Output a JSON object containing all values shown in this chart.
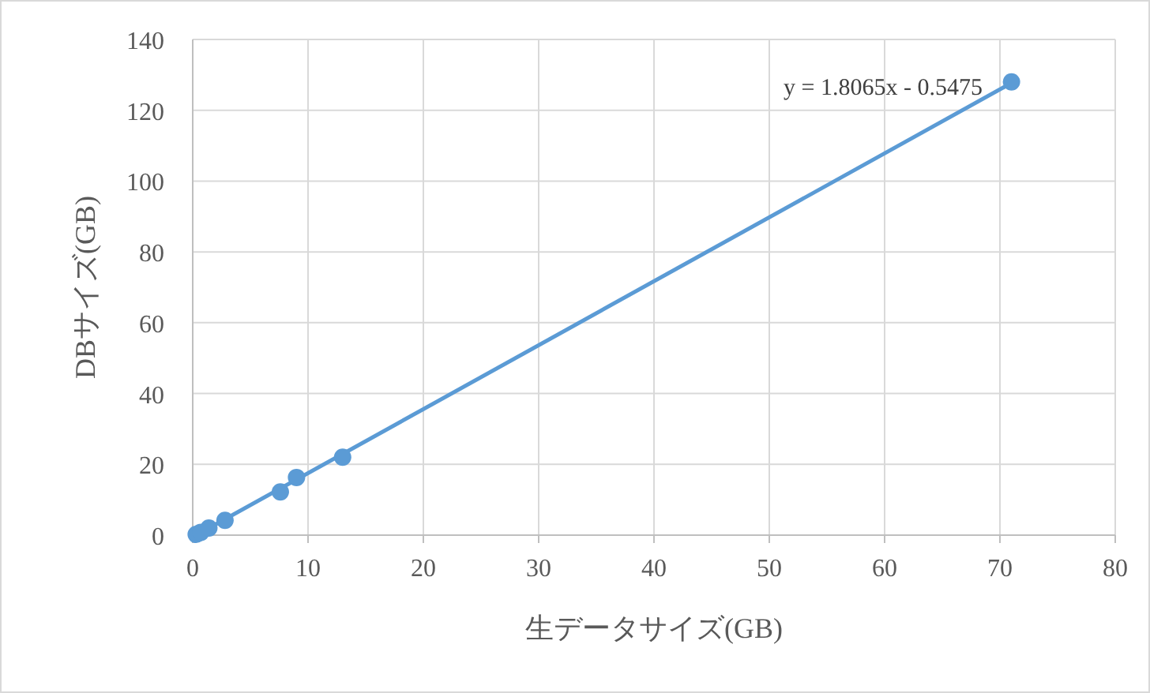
{
  "chart_data": {
    "type": "scatter",
    "xlabel": "生データサイズ(GB)",
    "ylabel": "DBサイズ(GB)",
    "annotations": [
      "y = 1.8065x - 0.5475"
    ],
    "xlim": [
      0,
      80
    ],
    "xticks": [
      0,
      10,
      20,
      30,
      40,
      50,
      60,
      70,
      80
    ],
    "ylim": [
      0,
      140
    ],
    "yticks": [
      0,
      20,
      40,
      60,
      80,
      100,
      120,
      140
    ],
    "grid": true,
    "series": [
      {
        "type": "line",
        "color": "#5b9bd5",
        "x": [
          0.3,
          71
        ],
        "values": [
          0,
          127.7
        ],
        "line_style": "solid"
      },
      {
        "marker": "circle",
        "color": "#5b9bd5",
        "x": [
          0.3,
          0.7,
          1.4,
          2.8,
          7.6,
          9,
          13,
          71
        ],
        "values": [
          0.2,
          0.8,
          2,
          4.2,
          12.2,
          16.3,
          22,
          128
        ]
      }
    ]
  }
}
